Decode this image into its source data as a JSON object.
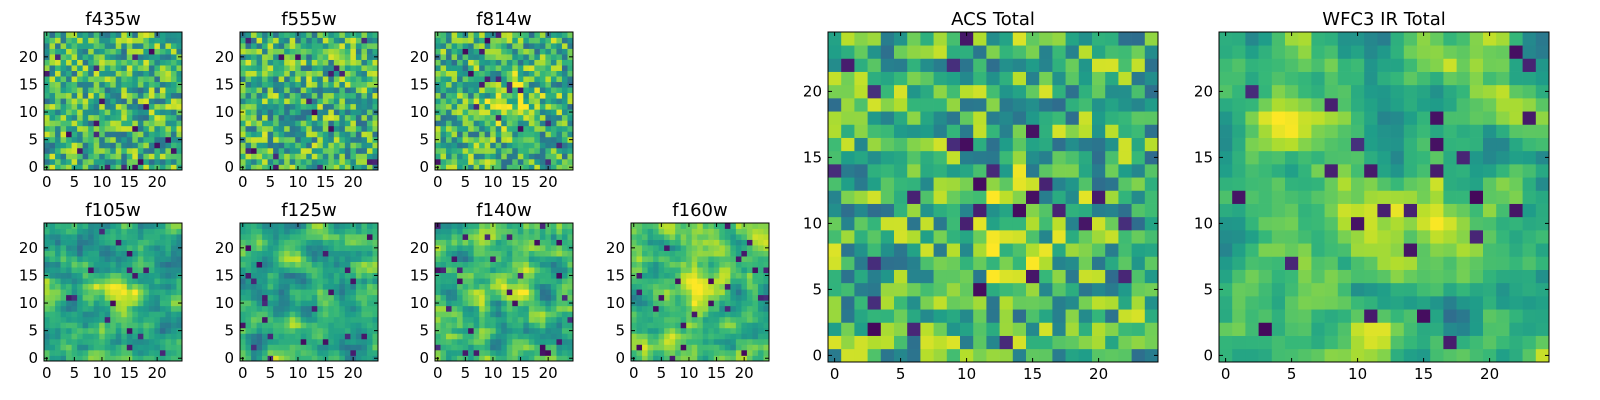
{
  "chart_data": [
    {
      "type": "heatmap",
      "title": "f435w",
      "colormap": "viridis",
      "grid": "25x25",
      "xlim": [
        0,
        25
      ],
      "ylim": [
        0,
        25
      ],
      "xticks": [
        "0",
        "5",
        "10",
        "15",
        "20"
      ],
      "yticks": [
        "0",
        "5",
        "10",
        "15",
        "20"
      ],
      "texture": "noise",
      "blobs": []
    },
    {
      "type": "heatmap",
      "title": "f555w",
      "colormap": "viridis",
      "grid": "25x25",
      "xlim": [
        0,
        25
      ],
      "ylim": [
        0,
        25
      ],
      "xticks": [
        "0",
        "5",
        "10",
        "15",
        "20"
      ],
      "yticks": [
        "0",
        "5",
        "10",
        "15",
        "20"
      ],
      "texture": "noise",
      "blobs": []
    },
    {
      "type": "heatmap",
      "title": "f814w",
      "colormap": "viridis",
      "grid": "25x25",
      "xlim": [
        0,
        25
      ],
      "ylim": [
        0,
        25
      ],
      "xticks": [
        "0",
        "5",
        "10",
        "15",
        "20"
      ],
      "yticks": [
        "0",
        "5",
        "10",
        "15",
        "20"
      ],
      "texture": "noise",
      "blobs": [
        {
          "x": 13,
          "y": 12,
          "amp": 0.35,
          "r": 3
        }
      ]
    },
    {
      "type": "heatmap",
      "title": "f105w",
      "colormap": "viridis",
      "grid": "25x25",
      "xlim": [
        0,
        25
      ],
      "ylim": [
        0,
        25
      ],
      "xticks": [
        "0",
        "5",
        "10",
        "15",
        "20"
      ],
      "yticks": [
        "0",
        "5",
        "10",
        "15",
        "20"
      ],
      "texture": "smooth",
      "blobs": [
        {
          "x": 12,
          "y": 12,
          "amp": 0.35,
          "r": 3
        }
      ]
    },
    {
      "type": "heatmap",
      "title": "f125w",
      "colormap": "viridis",
      "grid": "25x25",
      "xlim": [
        0,
        25
      ],
      "ylim": [
        0,
        25
      ],
      "xticks": [
        "0",
        "5",
        "10",
        "15",
        "20"
      ],
      "yticks": [
        "0",
        "5",
        "10",
        "15",
        "20"
      ],
      "texture": "smooth",
      "blobs": []
    },
    {
      "type": "heatmap",
      "title": "f140w",
      "colormap": "viridis",
      "grid": "25x25",
      "xlim": [
        0,
        25
      ],
      "ylim": [
        0,
        25
      ],
      "xticks": [
        "0",
        "5",
        "10",
        "15",
        "20"
      ],
      "yticks": [
        "0",
        "5",
        "10",
        "15",
        "20"
      ],
      "texture": "smooth",
      "blobs": [
        {
          "x": 12,
          "y": 12,
          "amp": 0.2,
          "r": 3
        }
      ]
    },
    {
      "type": "heatmap",
      "title": "f160w",
      "colormap": "viridis",
      "grid": "25x25",
      "xlim": [
        0,
        25
      ],
      "ylim": [
        0,
        25
      ],
      "xticks": [
        "0",
        "5",
        "10",
        "15",
        "20"
      ],
      "yticks": [
        "0",
        "5",
        "10",
        "15",
        "20"
      ],
      "texture": "smooth",
      "blobs": [
        {
          "x": 12,
          "y": 12,
          "amp": 0.25,
          "r": 3
        }
      ]
    },
    {
      "type": "heatmap",
      "title": "ACS Total",
      "colormap": "viridis",
      "grid": "25x25",
      "xlim": [
        0,
        25
      ],
      "ylim": [
        0,
        25
      ],
      "xticks": [
        "0",
        "5",
        "10",
        "15",
        "20"
      ],
      "yticks": [
        "0",
        "5",
        "10",
        "15",
        "20"
      ],
      "texture": "noise",
      "blobs": [
        {
          "x": 13,
          "y": 10,
          "amp": 0.25,
          "r": 3
        }
      ]
    },
    {
      "type": "heatmap",
      "title": "WFC3 IR Total",
      "colormap": "viridis",
      "grid": "25x25",
      "xlim": [
        0,
        25
      ],
      "ylim": [
        0,
        25
      ],
      "xticks": [
        "0",
        "5",
        "10",
        "15",
        "20"
      ],
      "yticks": [
        "0",
        "5",
        "10",
        "15",
        "20"
      ],
      "texture": "smooth",
      "blobs": [
        {
          "x": 12,
          "y": 11,
          "amp": 0.45,
          "r": 3
        },
        {
          "x": 4,
          "y": 17,
          "amp": 0.25,
          "r": 2
        },
        {
          "x": 17,
          "y": 8,
          "amp": 0.2,
          "r": 2
        }
      ]
    }
  ]
}
